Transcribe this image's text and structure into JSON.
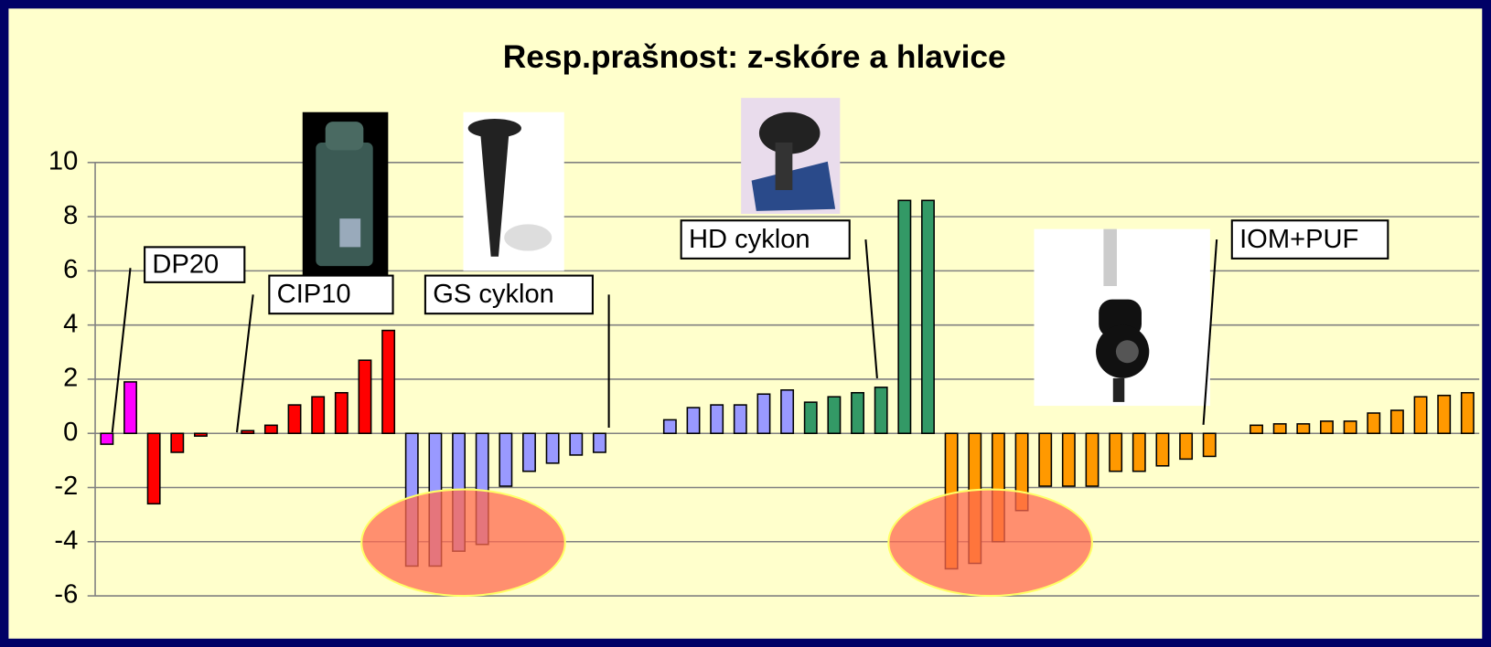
{
  "chart_data": {
    "type": "bar",
    "title": "Resp.prašnost: z-skóre a hlavice",
    "values": [
      -0.4,
      1.9,
      -2.6,
      -0.7,
      -0.1,
      null,
      0.1,
      0.3,
      1.05,
      1.35,
      1.5,
      2.7,
      3.8,
      -4.9,
      -4.9,
      -4.35,
      -4.1,
      -1.95,
      -1.4,
      -1.1,
      -0.8,
      -0.7,
      null,
      null,
      0.5,
      0.95,
      1.05,
      1.05,
      1.45,
      1.6,
      1.15,
      1.35,
      1.5,
      1.7,
      8.6,
      8.6,
      -5.0,
      -4.8,
      -4.0,
      -2.85,
      -1.95,
      -1.95,
      -1.95,
      -1.4,
      -1.4,
      -1.2,
      -0.95,
      -0.85,
      null,
      0.3,
      0.35,
      0.35,
      0.45,
      0.45,
      0.75,
      0.85,
      1.35,
      1.4,
      1.5
    ],
    "colors": [
      "#ff00ff",
      "#ff00ff",
      "#ff0000",
      "#ff0000",
      "#ff0000",
      null,
      "#ff0000",
      "#ff0000",
      "#ff0000",
      "#ff0000",
      "#ff0000",
      "#ff0000",
      "#ff0000",
      "#9999ff",
      "#9999ff",
      "#9999ff",
      "#9999ff",
      "#9999ff",
      "#9999ff",
      "#9999ff",
      "#9999ff",
      "#9999ff",
      null,
      null,
      "#9999ff",
      "#9999ff",
      "#9999ff",
      "#9999ff",
      "#9999ff",
      "#9999ff",
      "#339966",
      "#339966",
      "#339966",
      "#339966",
      "#339966",
      "#339966",
      "#ff9900",
      "#ff9900",
      "#ff9900",
      "#ff9900",
      "#ff9900",
      "#ff9900",
      "#ff9900",
      "#ff9900",
      "#ff9900",
      "#ff9900",
      "#ff9900",
      "#ff9900",
      null,
      "#ff9900",
      "#ff9900",
      "#ff9900",
      "#ff9900",
      "#ff9900",
      "#ff9900",
      "#ff9900",
      "#ff9900",
      "#ff9900",
      "#ff9900"
    ],
    "ylim": [
      -6,
      10
    ],
    "yticks": [
      10,
      8,
      6,
      4,
      2,
      0,
      -2,
      -4,
      -6
    ],
    "grid": true,
    "annotations": [
      "DP20",
      "CIP10",
      "GS cyklon",
      "HD cyklon",
      "IOM+PUF"
    ]
  }
}
